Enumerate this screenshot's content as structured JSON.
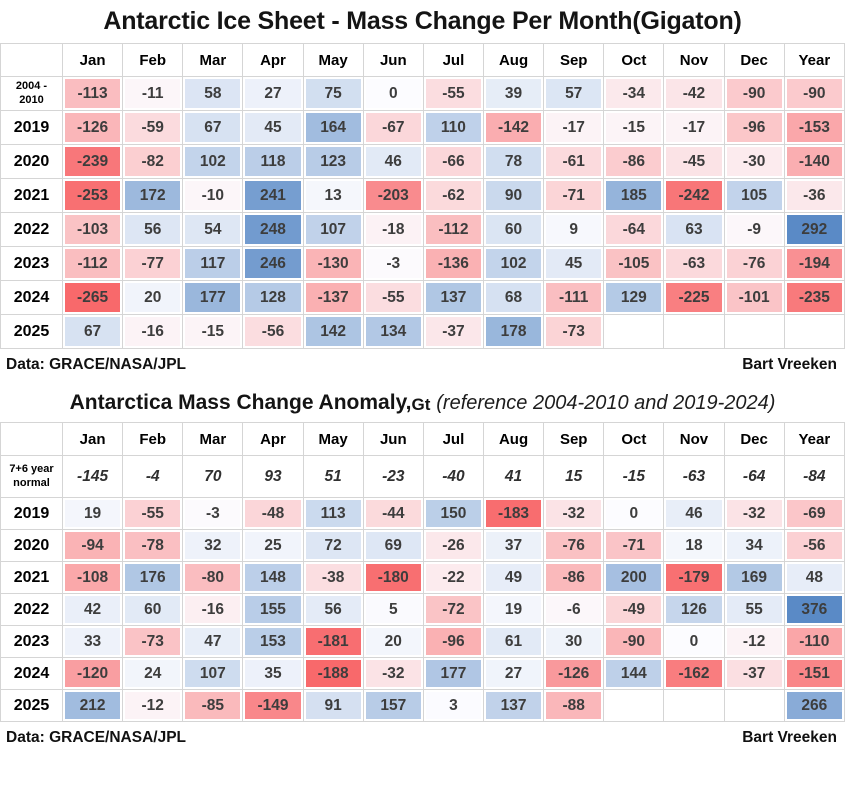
{
  "chart_data": [
    {
      "type": "heatmap",
      "title": "Antarctic Ice Sheet - Mass Change Per Month(Gigaton)",
      "columns": [
        "Jan",
        "Feb",
        "Mar",
        "Apr",
        "May",
        "Jun",
        "Jul",
        "Aug",
        "Sep",
        "Oct",
        "Nov",
        "Dec",
        "Year"
      ],
      "rows": [
        {
          "label": "2004 -\n2010",
          "values": [
            -113,
            -11,
            58,
            27,
            75,
            0,
            -55,
            39,
            57,
            -34,
            -42,
            -90,
            -90
          ]
        },
        {
          "label": "2019",
          "values": [
            -126,
            -59,
            67,
            45,
            164,
            -67,
            110,
            -142,
            -17,
            -15,
            -17,
            -96,
            -153
          ]
        },
        {
          "label": "2020",
          "values": [
            -239,
            -82,
            102,
            118,
            123,
            46,
            -66,
            78,
            -61,
            -86,
            -45,
            -30,
            -140
          ]
        },
        {
          "label": "2021",
          "values": [
            -253,
            172,
            -10,
            241,
            13,
            -203,
            -62,
            90,
            -71,
            185,
            -242,
            105,
            -36
          ]
        },
        {
          "label": "2022",
          "values": [
            -103,
            56,
            54,
            248,
            107,
            -18,
            -112,
            60,
            9,
            -64,
            63,
            -9,
            292
          ]
        },
        {
          "label": "2023",
          "values": [
            -112,
            -77,
            117,
            246,
            -130,
            -3,
            -136,
            102,
            45,
            -105,
            -63,
            -76,
            -194
          ]
        },
        {
          "label": "2024",
          "values": [
            -265,
            20,
            177,
            128,
            -137,
            -55,
            137,
            68,
            -111,
            129,
            -225,
            -101,
            -235
          ]
        },
        {
          "label": "2025",
          "values": [
            67,
            -16,
            -15,
            -56,
            142,
            134,
            -37,
            178,
            -73,
            null,
            null,
            null,
            null
          ]
        }
      ],
      "color_scale": {
        "negative": "#F8696B",
        "zero": "#FCFCFF",
        "positive": "#5A8AC6",
        "domain_min": -265,
        "domain_max": 292
      },
      "footer_left": "Data: GRACE/NASA/JPL",
      "footer_right": "Bart Vreeken"
    },
    {
      "type": "heatmap",
      "title_bold": "Antarctica Mass Change Anomaly,",
      "title_unit": "Gt",
      "title_italic": "(reference 2004-2010 and 2019-2024)",
      "columns": [
        "Jan",
        "Feb",
        "Mar",
        "Apr",
        "May",
        "Jun",
        "Jul",
        "Aug",
        "Sep",
        "Oct",
        "Nov",
        "Dec",
        "Year"
      ],
      "rows": [
        {
          "label": "7+6 year\nnormal",
          "values": [
            -145,
            -4,
            70,
            93,
            51,
            -23,
            -40,
            41,
            15,
            -15,
            -63,
            -64,
            -84
          ],
          "plain": true,
          "tall": true
        },
        {
          "label": "2019",
          "values": [
            19,
            -55,
            -3,
            -48,
            113,
            -44,
            150,
            -183,
            -32,
            0,
            46,
            -32,
            -69
          ]
        },
        {
          "label": "2020",
          "values": [
            -94,
            -78,
            32,
            25,
            72,
            69,
            -26,
            37,
            -76,
            -71,
            18,
            34,
            -56
          ]
        },
        {
          "label": "2021",
          "values": [
            -108,
            176,
            -80,
            148,
            -38,
            -180,
            -22,
            49,
            -86,
            200,
            -179,
            169,
            48
          ]
        },
        {
          "label": "2022",
          "values": [
            42,
            60,
            -16,
            155,
            56,
            5,
            -72,
            19,
            -6,
            -49,
            126,
            55,
            376
          ]
        },
        {
          "label": "2023",
          "values": [
            33,
            -73,
            47,
            153,
            -181,
            20,
            -96,
            61,
            30,
            -90,
            0,
            -12,
            -110
          ]
        },
        {
          "label": "2024",
          "values": [
            -120,
            24,
            107,
            35,
            -188,
            -32,
            177,
            27,
            -126,
            144,
            -162,
            -37,
            -151
          ]
        },
        {
          "label": "2025",
          "values": [
            212,
            -12,
            -85,
            -149,
            91,
            157,
            3,
            137,
            -88,
            null,
            null,
            null,
            266
          ]
        }
      ],
      "color_scale": {
        "negative": "#F8696B",
        "zero": "#FCFCFF",
        "positive": "#5A8AC6",
        "domain_min": -188,
        "domain_max": 376
      },
      "footer_left": "Data: GRACE/NASA/JPL",
      "footer_right": "Bart Vreeken"
    }
  ]
}
